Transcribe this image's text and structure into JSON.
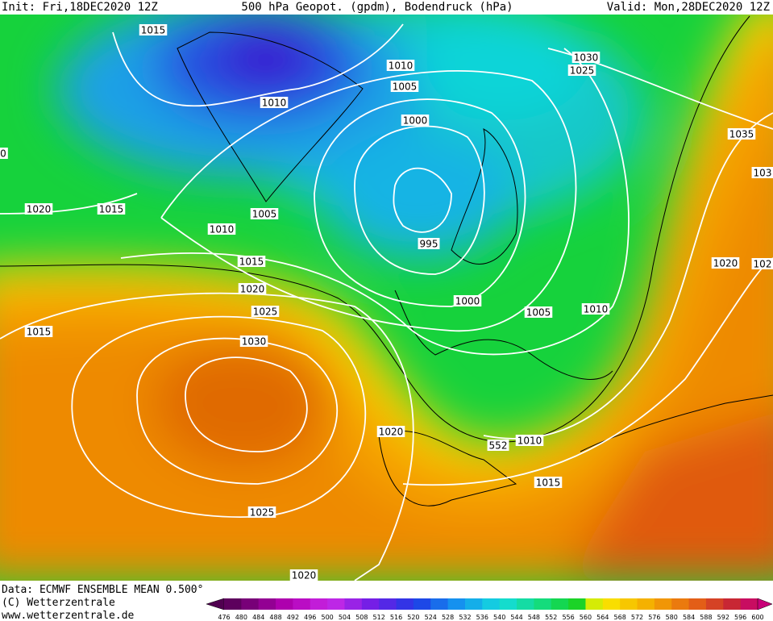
{
  "header": {
    "init": "Init: Fri,18DEC2020 12Z",
    "title": "500 hPa Geopot. (gpdm), Bodendruck (hPa)",
    "valid": "Valid: Mon,28DEC2020 12Z"
  },
  "contour_labels": [
    "1015",
    "1010",
    "1010",
    "1005",
    "1000",
    "1030",
    "1025",
    "1035",
    "103",
    "1020",
    "1015",
    "1005",
    "1010",
    "995",
    "1015",
    "1020",
    "102",
    "1020",
    "1000",
    "1005",
    "1010",
    "1025",
    "1015",
    "1030",
    "1020",
    "552",
    "1010",
    "1015",
    "1025",
    "1020",
    "0"
  ],
  "footer": {
    "data": "Data: ECMWF ENSEMBLE MEAN 0.500°",
    "copyright": "(C) Wetterzentrale",
    "url": "www.wetterzentrale.de"
  },
  "colorbar": {
    "levels": [
      476,
      480,
      484,
      488,
      492,
      496,
      500,
      504,
      508,
      512,
      516,
      520,
      524,
      528,
      532,
      536,
      540,
      544,
      548,
      552,
      556,
      560,
      564,
      568,
      572,
      576,
      580,
      584,
      588,
      592,
      596,
      600
    ]
  }
}
